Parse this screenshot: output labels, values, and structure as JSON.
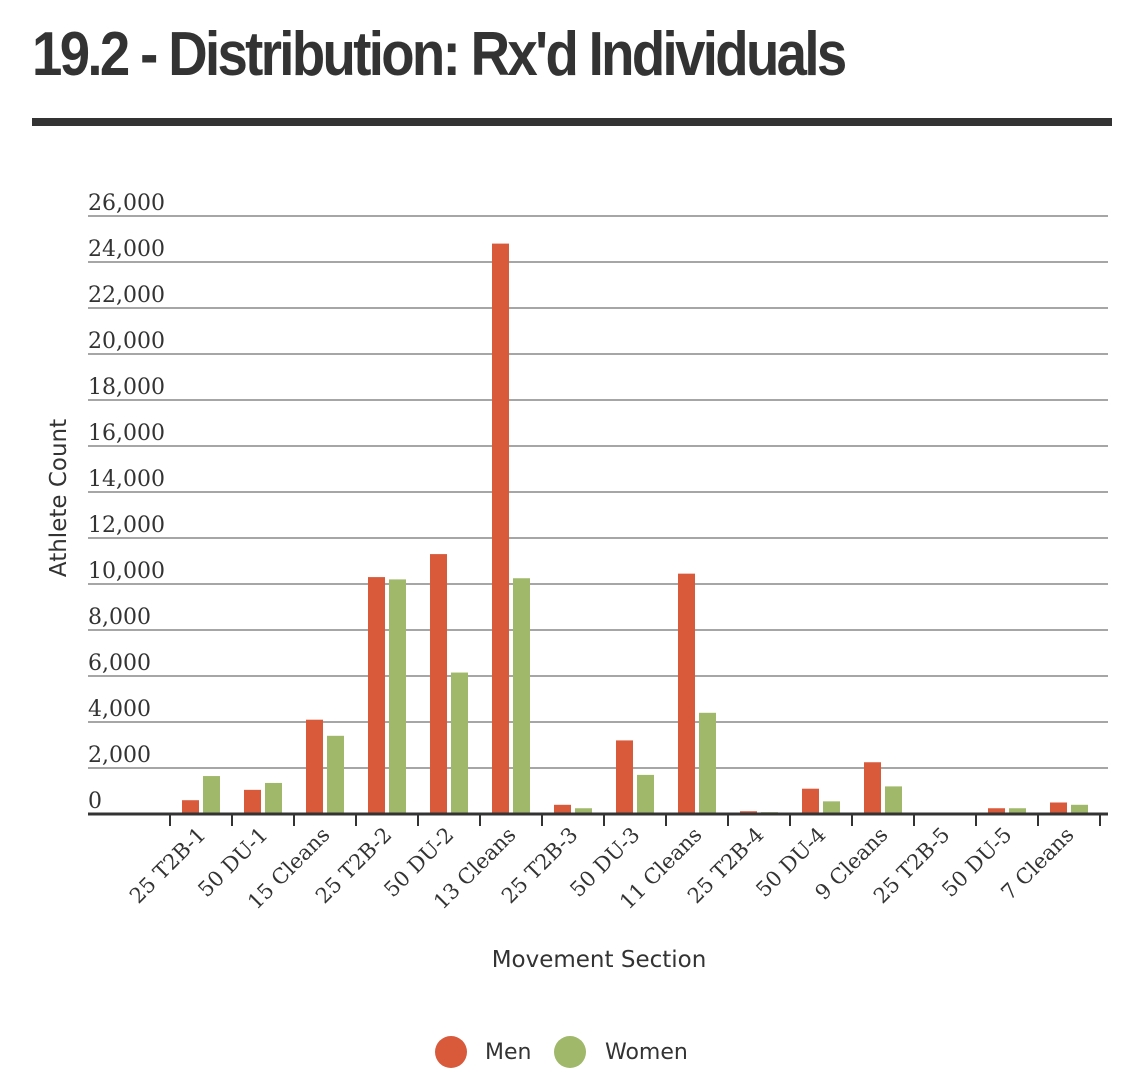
{
  "title": "19.2 - Distribution: Rx'd Individuals",
  "chart_data": {
    "type": "bar",
    "title": "19.2 - Distribution: Rx'd Individuals",
    "xlabel": "Movement Section",
    "ylabel": "Athlete Count",
    "ylim": [
      0,
      26000
    ],
    "yticks": [
      0,
      2000,
      4000,
      6000,
      8000,
      10000,
      12000,
      14000,
      16000,
      18000,
      20000,
      22000,
      24000,
      26000
    ],
    "ytick_labels": [
      "0",
      "2,000",
      "4,000",
      "6,000",
      "8,000",
      "10,000",
      "12,000",
      "14,000",
      "16,000",
      "18,000",
      "20,000",
      "22,000",
      "24,000",
      "26,000"
    ],
    "grid": true,
    "legend_position": "bottom",
    "categories": [
      "25 T2B-1",
      "50 DU-1",
      "15 Cleans",
      "25 T2B-2",
      "50 DU-2",
      "13 Cleans",
      "25 T2B-3",
      "50 DU-3",
      "11 Cleans",
      "25 T2B-4",
      "50 DU-4",
      "9 Cleans",
      "25 T2B-5",
      "50 DU-5",
      "7 Cleans"
    ],
    "series": [
      {
        "name": "Men",
        "color": "#d9593b",
        "values": [
          600,
          1050,
          4100,
          10300,
          11300,
          24800,
          400,
          3200,
          10450,
          120,
          1100,
          2250,
          30,
          250,
          500
        ]
      },
      {
        "name": "Women",
        "color": "#a0b86a",
        "values": [
          1650,
          1350,
          3400,
          10200,
          6150,
          10250,
          250,
          1700,
          4400,
          80,
          550,
          1200,
          20,
          250,
          400
        ]
      }
    ]
  }
}
